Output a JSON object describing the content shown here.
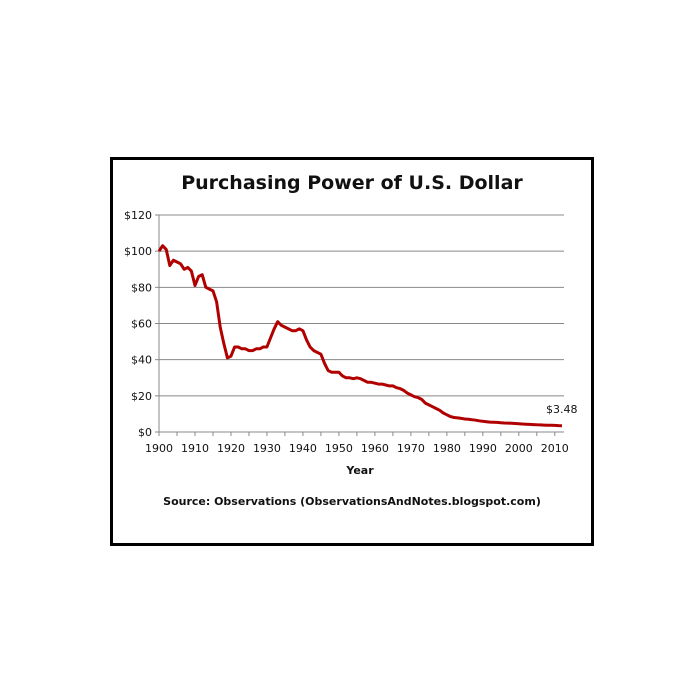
{
  "chart_data": {
    "type": "line",
    "title": "Purchasing Power of U.S. Dollar",
    "xlabel": "Year",
    "ylabel": "",
    "source": "Source: Observations  (ObservationsAndNotes.blogspot.com)",
    "annotation": "$3.48",
    "xlim": [
      1900,
      2012
    ],
    "ylim": [
      0,
      120
    ],
    "x_ticks": [
      "1900",
      "1910",
      "1920",
      "1930",
      "1940",
      "1950",
      "1960",
      "1970",
      "1980",
      "1990",
      "2000",
      "2010"
    ],
    "y_ticks": [
      "$0",
      "$20",
      "$40",
      "$60",
      "$80",
      "$100",
      "$120"
    ],
    "grid": "horizontal",
    "line_color": "#b00000",
    "x": [
      1900,
      1901,
      1902,
      1903,
      1904,
      1905,
      1906,
      1907,
      1908,
      1909,
      1910,
      1911,
      1912,
      1913,
      1914,
      1915,
      1916,
      1917,
      1918,
      1919,
      1920,
      1921,
      1922,
      1923,
      1924,
      1925,
      1926,
      1927,
      1928,
      1929,
      1930,
      1931,
      1932,
      1933,
      1934,
      1935,
      1936,
      1937,
      1938,
      1939,
      1940,
      1941,
      1942,
      1943,
      1944,
      1945,
      1946,
      1947,
      1948,
      1949,
      1950,
      1951,
      1952,
      1953,
      1954,
      1955,
      1956,
      1957,
      1958,
      1959,
      1960,
      1961,
      1962,
      1963,
      1964,
      1965,
      1966,
      1967,
      1968,
      1969,
      1970,
      1971,
      1972,
      1973,
      1974,
      1975,
      1976,
      1977,
      1978,
      1979,
      1980,
      1981,
      1982,
      1983,
      1984,
      1985,
      1986,
      1987,
      1988,
      1989,
      1990,
      1991,
      1992,
      1993,
      1994,
      1995,
      1996,
      1997,
      1998,
      1999,
      2000,
      2001,
      2002,
      2003,
      2004,
      2005,
      2006,
      2007,
      2008,
      2009,
      2010,
      2011,
      2012
    ],
    "values": [
      100,
      103,
      101,
      92,
      95,
      94,
      93,
      90,
      91,
      89,
      81,
      86,
      87,
      80,
      79,
      78,
      72,
      58,
      49,
      41,
      42,
      47,
      47,
      46,
      46,
      45,
      45,
      46,
      46,
      47,
      47,
      52,
      57,
      61,
      59,
      58,
      57,
      56,
      56,
      57,
      56,
      51,
      47,
      45,
      44,
      43,
      38,
      34,
      33,
      33,
      33,
      31,
      30,
      30,
      29.5,
      30,
      29.5,
      28.5,
      27.5,
      27.5,
      27,
      26.5,
      26.5,
      26,
      25.5,
      25.5,
      24.5,
      24,
      23,
      21.5,
      20.5,
      19.5,
      19,
      18,
      16,
      15,
      14,
      13,
      12,
      10.5,
      9.5,
      8.5,
      8,
      7.8,
      7.5,
      7.2,
      7,
      6.8,
      6.5,
      6.2,
      5.9,
      5.7,
      5.5,
      5.4,
      5.3,
      5.1,
      5,
      4.9,
      4.8,
      4.7,
      4.6,
      4.4,
      4.3,
      4.2,
      4.1,
      4,
      3.9,
      3.8,
      3.7,
      3.7,
      3.65,
      3.55,
      3.48
    ]
  }
}
